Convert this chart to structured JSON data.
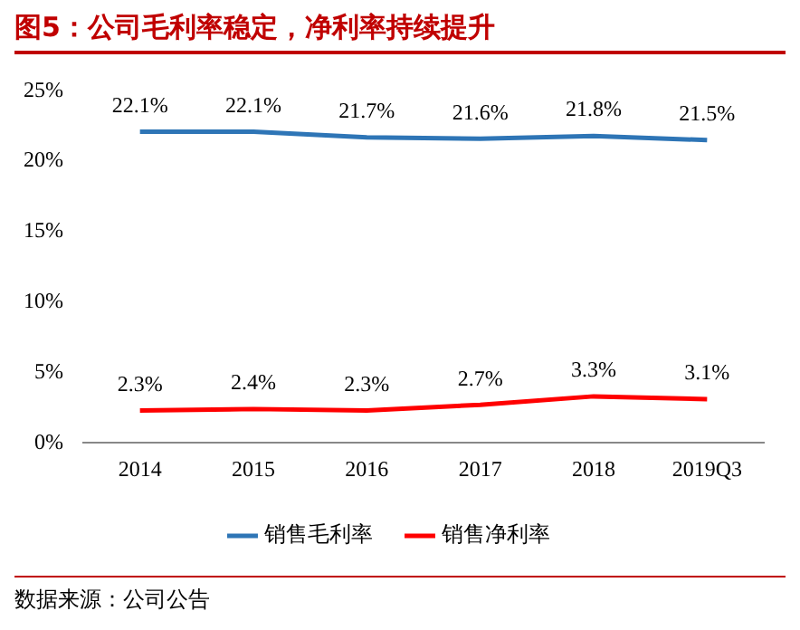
{
  "chart_data": {
    "type": "line",
    "title": "图5：公司毛利率稳定，净利率持续提升",
    "categories": [
      "2014",
      "2015",
      "2016",
      "2017",
      "2018",
      "2019Q3"
    ],
    "series": [
      {
        "name": "销售毛利率",
        "color": "#2e75b6",
        "values": [
          22.1,
          22.1,
          21.7,
          21.6,
          21.8,
          21.5
        ],
        "value_labels": [
          "22.1%",
          "22.1%",
          "21.7%",
          "21.6%",
          "21.8%",
          "21.5%"
        ]
      },
      {
        "name": "销售净利率",
        "color": "#ff0000",
        "values": [
          2.3,
          2.4,
          2.3,
          2.7,
          3.3,
          3.1
        ],
        "value_labels": [
          "2.3%",
          "2.4%",
          "2.3%",
          "2.7%",
          "3.3%",
          "3.1%"
        ]
      }
    ],
    "ylim": [
      0,
      25
    ],
    "yticks": [
      {
        "value": 0,
        "label": "0%"
      },
      {
        "value": 5,
        "label": "5%"
      },
      {
        "value": 10,
        "label": "10%"
      },
      {
        "value": 15,
        "label": "15%"
      },
      {
        "value": 20,
        "label": "20%"
      },
      {
        "value": 25,
        "label": "25%"
      }
    ],
    "grid": false,
    "legend": "bottom",
    "marker": "none",
    "line_style": "solid",
    "annotations": [
      "数据来源：公司公告"
    ]
  }
}
